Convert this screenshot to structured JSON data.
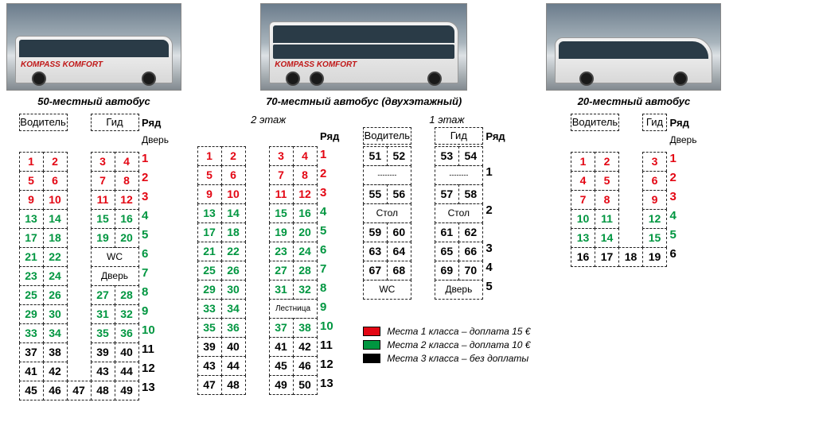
{
  "colors": {
    "class1": "#e30613",
    "class2": "#009640",
    "class3": "#000000",
    "swatch1": "#e30613",
    "swatch2": "#009640",
    "swatch3": "#000000"
  },
  "row_header": "Ряд",
  "door_label": "Дверь",
  "driver_label": "Водитель",
  "guide_label": "Гид",
  "wc_label": "WC",
  "stairs_label": "Лестница",
  "table_label": "Стол",
  "dash": "--------",
  "brand_text": "KOMPASS KOMFORT",
  "bus50": {
    "title": "50-местный автобус",
    "rows": [
      {
        "n": "1",
        "cells": [
          "1",
          "2",
          "",
          "3",
          "4"
        ],
        "cls": "cls1"
      },
      {
        "n": "2",
        "cells": [
          "5",
          "6",
          "",
          "7",
          "8"
        ],
        "cls": "cls1"
      },
      {
        "n": "3",
        "cells": [
          "9",
          "10",
          "",
          "11",
          "12"
        ],
        "cls": "cls1"
      },
      {
        "n": "4",
        "cells": [
          "13",
          "14",
          "",
          "15",
          "16"
        ],
        "cls": "cls2"
      },
      {
        "n": "5",
        "cells": [
          "17",
          "18",
          "",
          "19",
          "20"
        ],
        "cls": "cls2"
      },
      {
        "n": "6",
        "cells": [
          "21",
          "22",
          "",
          "WC",
          "WC"
        ],
        "cls": "cls2",
        "wc": true
      },
      {
        "n": "7",
        "cells": [
          "23",
          "24",
          "",
          "Дверь",
          "Дверь"
        ],
        "cls": "cls2",
        "door": true
      },
      {
        "n": "8",
        "cells": [
          "25",
          "26",
          "",
          "27",
          "28"
        ],
        "cls": "cls2"
      },
      {
        "n": "9",
        "cells": [
          "29",
          "30",
          "",
          "31",
          "32"
        ],
        "cls": "cls2"
      },
      {
        "n": "10",
        "cells": [
          "33",
          "34",
          "",
          "35",
          "36"
        ],
        "cls": "cls2"
      },
      {
        "n": "11",
        "cells": [
          "37",
          "38",
          "",
          "39",
          "40"
        ],
        "cls": "cls3"
      },
      {
        "n": "12",
        "cells": [
          "41",
          "42",
          "",
          "43",
          "44"
        ],
        "cls": "cls3"
      },
      {
        "n": "13",
        "cells": [
          "45",
          "46",
          "47",
          "48",
          "49"
        ],
        "cls": "cls3"
      }
    ]
  },
  "bus70": {
    "title": "70-местный автобус (двухэтажный)",
    "floor2_title": "2 этаж",
    "floor1_title": "1 этаж",
    "floor2_rows": [
      {
        "n": "1",
        "cells": [
          "1",
          "2",
          "",
          "3",
          "4"
        ],
        "cls": "cls1"
      },
      {
        "n": "2",
        "cells": [
          "5",
          "6",
          "",
          "7",
          "8"
        ],
        "cls": "cls1"
      },
      {
        "n": "3",
        "cells": [
          "9",
          "10",
          "",
          "11",
          "12"
        ],
        "cls": "cls1"
      },
      {
        "n": "4",
        "cells": [
          "13",
          "14",
          "",
          "15",
          "16"
        ],
        "cls": "cls2"
      },
      {
        "n": "5",
        "cells": [
          "17",
          "18",
          "",
          "19",
          "20"
        ],
        "cls": "cls2"
      },
      {
        "n": "6",
        "cells": [
          "21",
          "22",
          "",
          "23",
          "24"
        ],
        "cls": "cls2"
      },
      {
        "n": "7",
        "cells": [
          "25",
          "26",
          "",
          "27",
          "28"
        ],
        "cls": "cls2"
      },
      {
        "n": "8",
        "cells": [
          "29",
          "30",
          "",
          "31",
          "32"
        ],
        "cls": "cls2"
      },
      {
        "n": "9",
        "cells": [
          "33",
          "34",
          "",
          "Лестница",
          "Лестница"
        ],
        "cls": "cls2",
        "stairs": true
      },
      {
        "n": "10",
        "cells": [
          "35",
          "36",
          "",
          "37",
          "38"
        ],
        "cls": "cls2"
      },
      {
        "n": "11",
        "cells": [
          "39",
          "40",
          "",
          "41",
          "42"
        ],
        "cls": "cls3"
      },
      {
        "n": "12",
        "cells": [
          "43",
          "44",
          "",
          "45",
          "46"
        ],
        "cls": "cls3"
      },
      {
        "n": "13",
        "cells": [
          "47",
          "48",
          "",
          "49",
          "50"
        ],
        "cls": "cls3"
      }
    ],
    "floor1_rows": [
      {
        "n": "1",
        "cells": [
          "51",
          "52",
          "",
          "53",
          "54"
        ],
        "cls": "cls3",
        "hdr": true
      },
      {
        "n": "",
        "cells": [
          "--------",
          "--------",
          "",
          "--------",
          "--------"
        ],
        "cls": "cls3",
        "dash": true
      },
      {
        "n": "2",
        "cells": [
          "55",
          "56",
          "",
          "57",
          "58"
        ],
        "cls": "cls3"
      },
      {
        "n": "",
        "cells": [
          "Стол",
          "Стол",
          "",
          "Стол",
          "Стол"
        ],
        "cls": "cls3",
        "table": true
      },
      {
        "n": "3",
        "cells": [
          "59",
          "60",
          "",
          "61",
          "62"
        ],
        "cls": "cls3"
      },
      {
        "n": "4",
        "cells": [
          "63",
          "64",
          "",
          "65",
          "66"
        ],
        "cls": "cls3"
      },
      {
        "n": "5",
        "cells": [
          "67",
          "68",
          "",
          "69",
          "70"
        ],
        "cls": "cls3"
      },
      {
        "n": "",
        "cells": [
          "WC",
          "WC",
          "",
          "Дверь",
          "Дверь"
        ],
        "cls": "cls3",
        "wc_door": true
      }
    ]
  },
  "bus20": {
    "title": "20-местный автобус",
    "rows": [
      {
        "n": "1",
        "cells": [
          "1",
          "2",
          "",
          "3"
        ],
        "cls": "cls1"
      },
      {
        "n": "2",
        "cells": [
          "4",
          "5",
          "",
          "6"
        ],
        "cls": "cls1"
      },
      {
        "n": "3",
        "cells": [
          "7",
          "8",
          "",
          "9"
        ],
        "cls": "cls1"
      },
      {
        "n": "4",
        "cells": [
          "10",
          "11",
          "",
          "12"
        ],
        "cls": "cls2"
      },
      {
        "n": "5",
        "cells": [
          "13",
          "14",
          "",
          "15"
        ],
        "cls": "cls2"
      },
      {
        "n": "6",
        "cells": [
          "16",
          "17",
          "18",
          "19"
        ],
        "cls": "cls3"
      }
    ]
  },
  "legend": [
    {
      "color": "#e30613",
      "text": "Места 1 класса – доплата  15 €"
    },
    {
      "color": "#009640",
      "text": "Места 2 класса – доплата  10 €"
    },
    {
      "color": "#000000",
      "text": "Места 3 класса – без доплаты"
    }
  ]
}
